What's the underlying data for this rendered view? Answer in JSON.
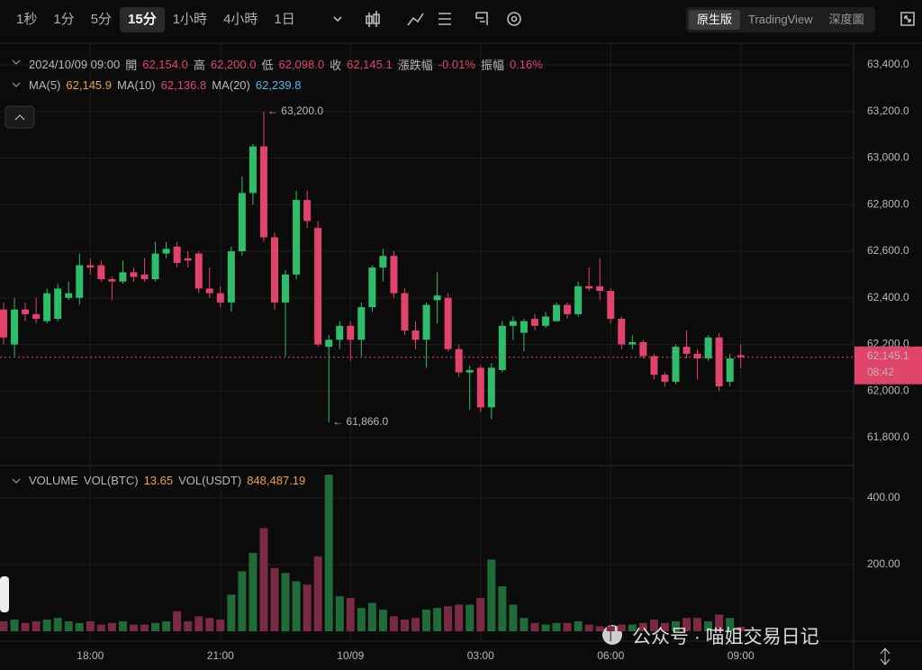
{
  "toolbar": {
    "intervals": [
      "1秒",
      "1分",
      "5分",
      "15分",
      "1小時",
      "4小時",
      "1日"
    ],
    "active_interval": "15分",
    "views": [
      "原生版",
      "TradingView",
      "深度圖"
    ],
    "active_view": "原生版"
  },
  "ohlc_info": {
    "time": "2024/10/09 09:00",
    "fields": [
      {
        "label": "開",
        "value": "62,154.0"
      },
      {
        "label": "高",
        "value": "62,200.0"
      },
      {
        "label": "低",
        "value": "62,098.0"
      },
      {
        "label": "收",
        "value": "62,145.1"
      },
      {
        "label": "漲跌幅",
        "value": "-0.01%"
      },
      {
        "label": "振幅",
        "value": "0.16%"
      }
    ],
    "value_color": "#e0446b"
  },
  "ma_info": [
    {
      "label": "MA(5)",
      "value": "62,145.9",
      "color": "#e8a33d"
    },
    {
      "label": "MA(10)",
      "value": "62,136.8",
      "color": "#e0447e"
    },
    {
      "label": "MA(20)",
      "value": "62,239.8",
      "color": "#4fb8e8"
    }
  ],
  "volume_info": {
    "title": "VOLUME",
    "fields": [
      {
        "label": "VOL(BTC)",
        "value": "13.65"
      },
      {
        "label": "VOL(USDT)",
        "value": "848,487.19"
      }
    ],
    "value_color": "#e8a33d"
  },
  "watermark": "公众号 · 喵姐交易日记",
  "chart_data": {
    "type": "candlestick",
    "x": [
      "16:00",
      "16:15",
      "16:30",
      "16:45",
      "17:00",
      "17:15",
      "17:30",
      "17:45",
      "18:00",
      "18:15",
      "18:30",
      "18:45",
      "19:00",
      "19:15",
      "19:30",
      "19:45",
      "20:00",
      "20:15",
      "20:30",
      "20:45",
      "21:00",
      "21:15",
      "21:30",
      "21:45",
      "22:00",
      "22:15",
      "22:30",
      "22:45",
      "23:00",
      "23:15",
      "23:30",
      "23:45",
      "10/09",
      "00:15",
      "00:30",
      "00:45",
      "01:00",
      "01:15",
      "01:30",
      "01:45",
      "02:00",
      "02:15",
      "02:30",
      "02:45",
      "03:00",
      "03:15",
      "03:30",
      "03:45",
      "04:00",
      "04:15",
      "04:30",
      "04:45",
      "05:00",
      "05:15",
      "05:30",
      "05:45",
      "06:00",
      "06:15",
      "06:30",
      "06:45",
      "07:00",
      "07:15",
      "07:30",
      "07:45",
      "08:00",
      "08:15",
      "08:30",
      "08:45",
      "09:00"
    ],
    "open": [
      62350,
      62200,
      62350,
      62330,
      62300,
      62310,
      62400,
      62400,
      62540,
      62540,
      62480,
      62470,
      62510,
      62500,
      62480,
      62590,
      62620,
      62570,
      62590,
      62440,
      62420,
      62380,
      62600,
      62850,
      63050,
      62660,
      62380,
      62500,
      62820,
      62700,
      62190,
      62220,
      62280,
      62220,
      62360,
      62530,
      62580,
      62420,
      62260,
      62220,
      62390,
      62400,
      62180,
      62080,
      62100,
      61930,
      62090,
      62280,
      62250,
      62310,
      62280,
      62300,
      62370,
      62330,
      62450,
      62450,
      62430,
      62310,
      62200,
      62210,
      62150,
      62070,
      62040,
      62190,
      62160,
      62140,
      62230,
      62040,
      62154
    ],
    "high": [
      62380,
      62400,
      62380,
      62400,
      62440,
      62460,
      62470,
      62590,
      62570,
      62560,
      62490,
      62560,
      62530,
      62570,
      62640,
      62640,
      62640,
      62600,
      62600,
      62530,
      62450,
      62620,
      62920,
      63060,
      63200,
      62680,
      62520,
      62860,
      62860,
      62730,
      62240,
      62300,
      62300,
      62380,
      62540,
      62610,
      62600,
      62440,
      62300,
      62380,
      62510,
      62420,
      62200,
      62110,
      62110,
      62120,
      62300,
      62320,
      62310,
      62330,
      62340,
      62380,
      62380,
      62470,
      62530,
      62570,
      62440,
      62320,
      62240,
      62220,
      62160,
      62080,
      62200,
      62260,
      62180,
      62240,
      62250,
      62160,
      62200
    ],
    "low": [
      62200,
      62150,
      62300,
      62290,
      62290,
      62300,
      62390,
      62370,
      62500,
      62470,
      62390,
      62460,
      62470,
      62470,
      62470,
      62570,
      62530,
      62530,
      62420,
      62400,
      62360,
      62340,
      62580,
      62800,
      62640,
      62350,
      62150,
      62480,
      62700,
      62190,
      61866,
      62180,
      62130,
      62150,
      62340,
      62470,
      62400,
      62240,
      62180,
      62100,
      62290,
      62170,
      62060,
      61920,
      61910,
      61880,
      62080,
      62220,
      62170,
      62260,
      62270,
      62300,
      62310,
      62320,
      62430,
      62390,
      62290,
      62180,
      62180,
      62140,
      62050,
      62020,
      62030,
      62140,
      62050,
      62130,
      62000,
      62020,
      62098
    ],
    "close": [
      62230,
      62350,
      62330,
      62310,
      62420,
      62440,
      62420,
      62540,
      62530,
      62480,
      62470,
      62510,
      62490,
      62480,
      62590,
      62610,
      62550,
      62560,
      62440,
      62420,
      62380,
      62600,
      62850,
      63050,
      62660,
      62380,
      62500,
      62820,
      62730,
      62200,
      62220,
      62280,
      62220,
      62360,
      62530,
      62580,
      62420,
      62260,
      62220,
      62370,
      62410,
      62180,
      62080,
      62090,
      61930,
      62100,
      62280,
      62300,
      62300,
      62280,
      62320,
      62370,
      62330,
      62450,
      62440,
      62430,
      62310,
      62200,
      62210,
      62150,
      62070,
      62040,
      62190,
      62160,
      62140,
      62230,
      62020,
      62140,
      62145.1
    ],
    "volume": [
      30,
      35,
      25,
      30,
      35,
      40,
      30,
      25,
      30,
      20,
      25,
      30,
      20,
      20,
      25,
      30,
      60,
      30,
      45,
      40,
      35,
      110,
      180,
      235,
      310,
      190,
      175,
      150,
      140,
      225,
      470,
      105,
      100,
      70,
      85,
      65,
      45,
      35,
      40,
      65,
      70,
      75,
      80,
      80,
      100,
      215,
      135,
      80,
      40,
      25,
      20,
      25,
      25,
      30,
      20,
      15,
      15,
      20,
      20,
      25,
      35,
      25,
      30,
      40,
      40,
      30,
      50,
      40,
      13.65
    ],
    "up_color": "#2ebd6b",
    "down_color": "#e0446b",
    "up_volume_color": "#1f6b3a",
    "down_volume_color": "#7a2a42",
    "ylim": [
      61688,
      63485
    ],
    "yticks": [
      {
        "value": 61800,
        "label": "61,800.0"
      },
      {
        "value": 62000,
        "label": "62,000.0"
      },
      {
        "value": 62200,
        "label": "62,200.0"
      },
      {
        "value": 62400,
        "label": "62,400.0"
      },
      {
        "value": 62600,
        "label": "62,600.0"
      },
      {
        "value": 62800,
        "label": "62,800.0"
      },
      {
        "value": 63000,
        "label": "63,000.0"
      },
      {
        "value": 63200,
        "label": "63,200.0"
      },
      {
        "value": 63400,
        "label": "63,400.0"
      }
    ],
    "y2lim": [
      0,
      480
    ],
    "y2ticks": [
      {
        "value": 200,
        "label": "200.00"
      },
      {
        "value": 400,
        "label": "400.00"
      }
    ],
    "xticks": [
      "18:00",
      "21:00",
      "10/09",
      "03:00",
      "06:00",
      "09:00"
    ],
    "grid": true,
    "last_price": {
      "value": 62145.1,
      "label": "62,145.1"
    },
    "countdown": "08:42",
    "annotations": [
      {
        "value": 63200,
        "label": "← 63,200.0"
      },
      {
        "value": 61866,
        "label": "← 61,866.0"
      }
    ]
  }
}
